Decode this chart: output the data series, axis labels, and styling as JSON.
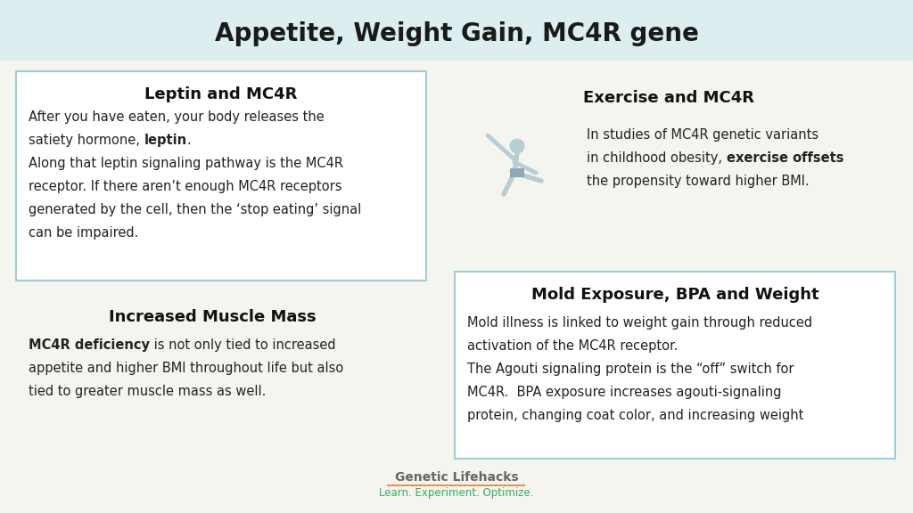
{
  "title": "Appetite, Weight Gain, MC4R gene",
  "title_fontsize": 20,
  "title_bg_color": "#ddeef0",
  "main_bg_color": "#f5f5f0",
  "box_border_color": "#9ecdd4",
  "box_bg_color": "#ffffff",
  "box1_title": "Leptin and MC4R",
  "box2_title": "Exercise and MC4R",
  "box3_title": "Increased Muscle Mass",
  "box4_title": "Mold Exposure, BPA and Weight",
  "footer_text1": "Genetic Lifehacks",
  "footer_text2": "Learn. Experiment. Optimize.",
  "footer_color1": "#666666",
  "footer_color2": "#3aaa5c",
  "footer_dotted_color": "#e07820"
}
